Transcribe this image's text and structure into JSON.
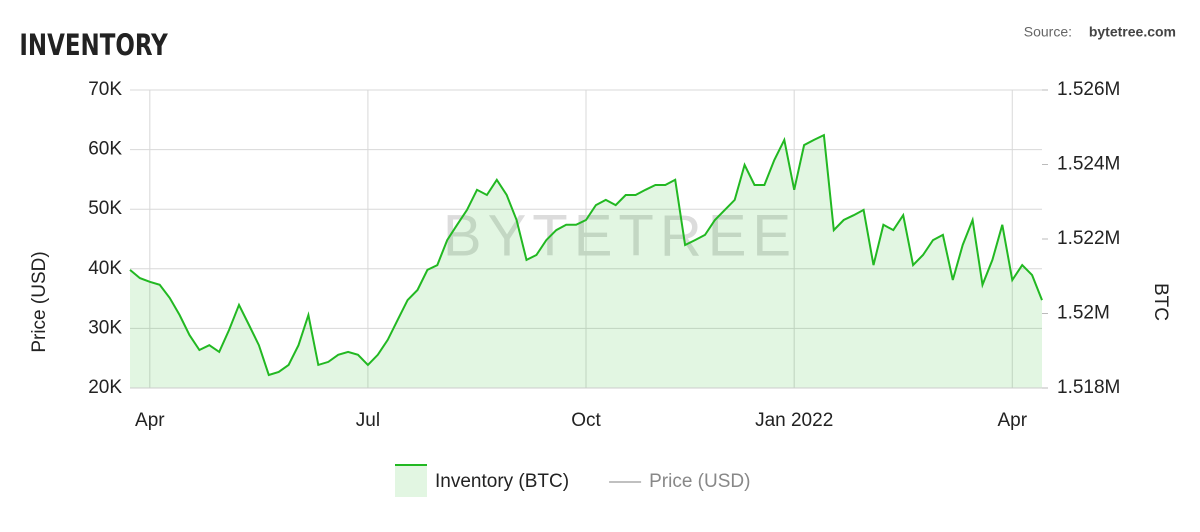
{
  "chart_data": {
    "type": "line",
    "title": "INVENTORY",
    "source": {
      "label": "Source:",
      "name": "bytetree.com"
    },
    "watermark": "BYTETREE",
    "categories": [
      null,
      null,
      "Apr",
      null,
      null,
      null,
      null,
      null,
      null,
      null,
      null,
      null,
      null,
      null,
      null,
      null,
      null,
      null,
      null,
      null,
      null,
      null,
      null,
      null,
      "Jul",
      null,
      null,
      null,
      null,
      null,
      null,
      null,
      null,
      null,
      null,
      null,
      null,
      null,
      null,
      null,
      null,
      null,
      null,
      null,
      null,
      null,
      "Oct",
      null,
      null,
      null,
      null,
      null,
      null,
      null,
      null,
      null,
      null,
      null,
      null,
      null,
      null,
      null,
      null,
      null,
      null,
      null,
      null,
      "Jan 2022",
      null,
      null,
      null,
      null,
      null,
      null,
      null,
      null,
      null,
      null,
      null,
      null,
      null,
      null,
      null,
      null,
      null,
      null,
      null,
      null,
      null,
      "Apr",
      null,
      null,
      null
    ],
    "series": [
      {
        "name": "Inventory (BTC)",
        "color": "#22b822",
        "axis": "y2",
        "fill": true,
        "values": [
          1521170,
          1520950,
          1520850,
          1520770,
          1520420,
          1519960,
          1519420,
          1519020,
          1519150,
          1518970,
          1519560,
          1520230,
          1519690,
          1519150,
          1518350,
          1518430,
          1518620,
          1519150,
          1519960,
          1518620,
          1518700,
          1518890,
          1518970,
          1518890,
          1518620,
          1518890,
          1519290,
          1519830,
          1520360,
          1520630,
          1521170,
          1521300,
          1521970,
          1522380,
          1522780,
          1523320,
          1523180,
          1523590,
          1523180,
          1522510,
          1521440,
          1521570,
          1521970,
          1522240,
          1522380,
          1522380,
          1522510,
          1522910,
          1523050,
          1522910,
          1523180,
          1523180,
          1523320,
          1523450,
          1523450,
          1523590,
          1521840,
          1521970,
          1522110,
          1522510,
          1522780,
          1523050,
          1523990,
          1523450,
          1523450,
          1524120,
          1524660,
          1523320,
          1524520,
          1524660,
          1524790,
          1522240,
          1522510,
          1522640,
          1522780,
          1521300,
          1522380,
          1522240,
          1522640,
          1521300,
          1521570,
          1521970,
          1522110,
          1520900,
          1521840,
          1522510,
          1520770,
          1521440,
          1522380,
          1520900,
          1521300,
          1521030,
          1520360
        ]
      },
      {
        "name": "Price (USD)",
        "color": "#9a9a9a",
        "values": [
          null,
          null,
          null,
          null,
          null,
          null,
          null,
          null,
          null,
          null,
          null,
          null,
          null,
          null,
          null,
          null,
          null,
          null,
          null,
          null,
          null,
          null,
          null,
          null,
          null,
          null,
          null,
          null,
          null,
          null,
          null,
          null,
          null,
          null,
          null,
          null,
          null,
          null,
          null,
          null,
          null,
          null,
          null,
          null,
          null,
          null,
          null,
          null,
          null,
          null,
          null,
          null,
          null,
          null,
          null,
          null,
          null,
          null,
          null,
          null,
          null,
          null,
          null,
          null,
          null,
          null,
          null,
          null,
          null,
          null,
          null,
          null,
          null,
          null,
          null,
          null,
          null,
          null,
          null,
          null,
          null,
          null,
          null,
          null,
          null,
          null,
          null,
          null,
          null,
          null,
          null,
          null,
          null
        ]
      }
    ],
    "y_label": "Price (USD)",
    "y2_label": "BTC",
    "ylim": [
      20000,
      70000
    ],
    "yticks": [
      {
        "value": 20000,
        "label": "20K"
      },
      {
        "value": 30000,
        "label": "30K"
      },
      {
        "value": 40000,
        "label": "40K"
      },
      {
        "value": 50000,
        "label": "50K"
      },
      {
        "value": 60000,
        "label": "60K"
      },
      {
        "value": 70000,
        "label": "70K"
      }
    ],
    "y2lim": [
      1518000,
      1526000
    ],
    "y2ticks": [
      {
        "value": 1518000,
        "label": "1.518M"
      },
      {
        "value": 1520000,
        "label": "1.52M"
      },
      {
        "value": 1522000,
        "label": "1.522M"
      },
      {
        "value": 1524000,
        "label": "1.524M"
      },
      {
        "value": 1526000,
        "label": "1.526M"
      }
    ],
    "grid": true
  }
}
